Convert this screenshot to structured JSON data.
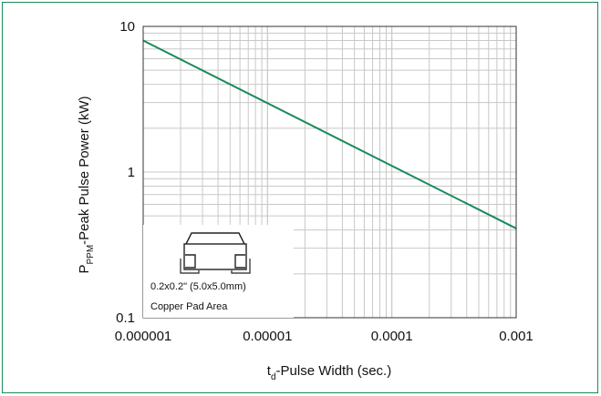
{
  "chart_data": {
    "type": "line",
    "xscale": "log",
    "yscale": "log",
    "xlim": [
      1e-06,
      0.001
    ],
    "ylim": [
      0.1,
      10
    ],
    "x_ticks": [
      "0.000001",
      "0.00001",
      "0.0001",
      "0.001"
    ],
    "y_ticks": [
      "0.1",
      "1",
      "10"
    ],
    "ylabel_parts": {
      "main": "P",
      "sub": "PPM",
      "rest": "-Peak Pulse Power (kW)"
    },
    "xlabel_parts": {
      "main": "t",
      "sub": "d",
      "rest": "-Pulse Width (sec.)"
    },
    "grid": true,
    "series": [
      {
        "color": "#1a8a5a",
        "x": [
          1e-06,
          0.001
        ],
        "y": [
          8.0,
          0.41
        ]
      }
    ],
    "annotation": {
      "line1": "0.2x0.2\" (5.0x5.0mm)",
      "line2": "Copper Pad Area"
    }
  },
  "colors": {
    "frame": "#1a8a5a",
    "line": "#1a8a5a",
    "grid": "#c8c8c8"
  }
}
